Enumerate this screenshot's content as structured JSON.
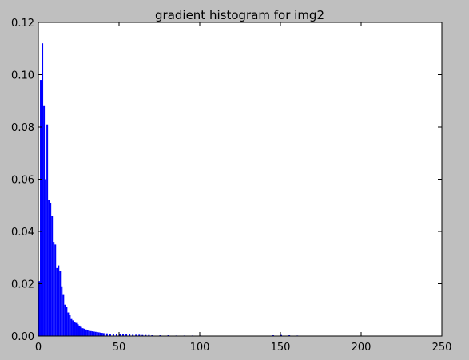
{
  "colors": {
    "figure_background": "#bfbfbf",
    "plot_background": "#ffffff",
    "bar_fill": "#0000ff",
    "axis": "#000000"
  },
  "chart_data": {
    "type": "bar",
    "title": "gradient histogram for img2",
    "xlabel": "",
    "ylabel": "",
    "xlim": [
      0,
      250
    ],
    "ylim": [
      0,
      0.12
    ],
    "xticks": [
      0,
      50,
      100,
      150,
      200,
      250
    ],
    "yticks": [
      0.0,
      0.02,
      0.04,
      0.06,
      0.08,
      0.1,
      0.12
    ],
    "xtick_labels": [
      "0",
      "50",
      "100",
      "150",
      "200",
      "250"
    ],
    "ytick_labels": [
      "0.00",
      "0.02",
      "0.04",
      "0.06",
      "0.08",
      "0.10",
      "0.12"
    ],
    "grid": false,
    "legend": false,
    "bin_width": 1,
    "bin_starts": [
      0,
      1,
      2,
      3,
      4,
      5,
      6,
      7,
      8,
      9,
      10,
      11,
      12,
      13,
      14,
      15,
      16,
      17,
      18,
      19,
      20,
      21,
      22,
      23,
      24,
      25,
      26,
      27,
      28,
      29,
      30,
      31,
      32,
      33,
      34,
      35,
      36,
      37,
      38,
      39,
      40,
      42,
      44,
      46,
      48,
      50,
      52,
      54,
      56,
      58,
      60,
      62,
      64,
      66,
      68,
      70,
      75,
      80,
      85,
      90,
      95,
      100,
      110,
      120,
      130,
      140,
      145,
      150,
      155,
      160
    ],
    "values": [
      0.021,
      0.098,
      0.112,
      0.088,
      0.06,
      0.081,
      0.052,
      0.051,
      0.046,
      0.036,
      0.035,
      0.026,
      0.027,
      0.025,
      0.019,
      0.016,
      0.012,
      0.011,
      0.009,
      0.008,
      0.0065,
      0.006,
      0.0055,
      0.005,
      0.0045,
      0.004,
      0.0035,
      0.003,
      0.0028,
      0.0025,
      0.0023,
      0.002,
      0.0019,
      0.0018,
      0.0017,
      0.0016,
      0.0015,
      0.0014,
      0.0013,
      0.0012,
      0.0011,
      0.001,
      0.0009,
      0.0008,
      0.0008,
      0.0007,
      0.0007,
      0.0006,
      0.0006,
      0.0005,
      0.0005,
      0.0005,
      0.0004,
      0.0004,
      0.0004,
      0.0003,
      0.0003,
      0.0003,
      0.0002,
      0.0002,
      0.0002,
      0.0002,
      0.0001,
      0.0001,
      0.0001,
      0.0001,
      0.0003,
      0.0004,
      0.0003,
      0.0002
    ]
  }
}
